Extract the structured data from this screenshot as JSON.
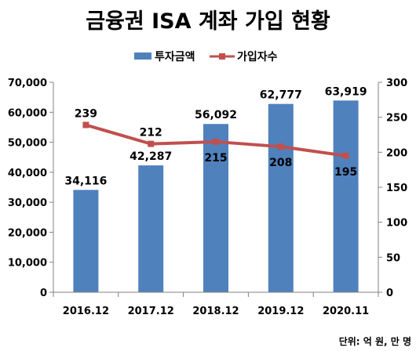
{
  "chart_data": {
    "type": "bar",
    "title": "금융권 ISA 계좌 가입 현황",
    "categories": [
      "2016.12",
      "2017.12",
      "2018.12",
      "2019.12",
      "2020.11"
    ],
    "series": [
      {
        "name": "투자금액",
        "type": "bar",
        "axis": "left",
        "color": "#4f81bd",
        "values": [
          34116,
          42287,
          56092,
          62777,
          63919
        ],
        "labels": [
          "34,116",
          "42,287",
          "56,092",
          "62,777",
          "63,919"
        ]
      },
      {
        "name": "가입자수",
        "type": "line",
        "axis": "right",
        "color": "#c0504d",
        "values": [
          239,
          212,
          215,
          208,
          195
        ],
        "labels": [
          "239",
          "212",
          "215",
          "208",
          "195"
        ]
      }
    ],
    "ylim_left": [
      0,
      70000
    ],
    "ylim_right": [
      0,
      300
    ],
    "yticks_left": [
      "0",
      "10,000",
      "20,000",
      "30,000",
      "40,000",
      "50,000",
      "60,000",
      "70,000"
    ],
    "yticks_right": [
      "0",
      "50",
      "100",
      "150",
      "200",
      "250",
      "300"
    ],
    "legend": "top",
    "grid": false,
    "unit_note": "단위: 억 원, 만 명"
  }
}
